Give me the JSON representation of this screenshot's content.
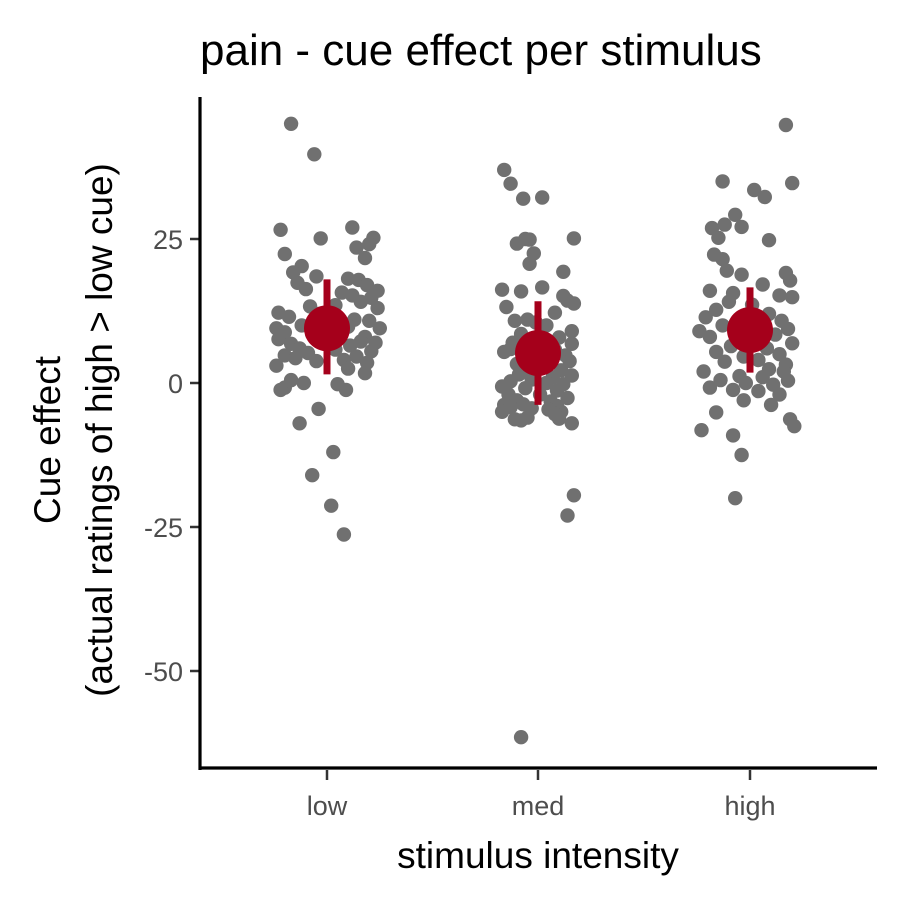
{
  "chart_data": {
    "type": "scatter",
    "title": "pain - cue effect per stimulus",
    "xlabel": "stimulus intensity",
    "ylabel": [
      "Cue effect",
      "(actual ratings of high > low cue)"
    ],
    "categories": [
      "low",
      "med",
      "high"
    ],
    "yticks": [
      -50,
      -25,
      0,
      25
    ],
    "ytick_labels": [
      "-50",
      "-25",
      "0",
      "25"
    ],
    "ylim": [
      -66,
      50
    ],
    "grid": false,
    "legend": "none",
    "colors": {
      "points": "#707070",
      "summary": "#a5001b",
      "axis": "#000000",
      "tick_text": "#4d4d4d"
    },
    "series": [
      {
        "category": "low",
        "mean": 9.5,
        "ci_low": 1.5,
        "ci_high": 18,
        "points": [
          {
            "jitter": -0.17,
            "y": 45.0
          },
          {
            "jitter": -0.06,
            "y": 39.7
          },
          {
            "jitter": 0.12,
            "y": 27.0
          },
          {
            "jitter": -0.22,
            "y": 26.6
          },
          {
            "jitter": -0.03,
            "y": 25.1
          },
          {
            "jitter": 0.22,
            "y": 25.2
          },
          {
            "jitter": 0.2,
            "y": 24.1
          },
          {
            "jitter": 0.14,
            "y": 23.5
          },
          {
            "jitter": -0.2,
            "y": 22.4
          },
          {
            "jitter": 0.18,
            "y": 21.7
          },
          {
            "jitter": -0.12,
            "y": 20.3
          },
          {
            "jitter": -0.16,
            "y": 19.2
          },
          {
            "jitter": -0.05,
            "y": 18.5
          },
          {
            "jitter": 0.1,
            "y": 18.1
          },
          {
            "jitter": 0.15,
            "y": 17.9
          },
          {
            "jitter": -0.14,
            "y": 17.4
          },
          {
            "jitter": 0.19,
            "y": 17.0
          },
          {
            "jitter": 0.24,
            "y": 16.0
          },
          {
            "jitter": -0.1,
            "y": 16.3
          },
          {
            "jitter": 0.07,
            "y": 15.7
          },
          {
            "jitter": 0.12,
            "y": 15.2
          },
          {
            "jitter": 0.21,
            "y": 14.8
          },
          {
            "jitter": 0.16,
            "y": 14.1
          },
          {
            "jitter": -0.08,
            "y": 13.3
          },
          {
            "jitter": 0.04,
            "y": 13.5
          },
          {
            "jitter": 0.24,
            "y": 13.0
          },
          {
            "jitter": -0.23,
            "y": 12.2
          },
          {
            "jitter": -0.04,
            "y": 12.0
          },
          {
            "jitter": -0.18,
            "y": 11.5
          },
          {
            "jitter": 0.13,
            "y": 11.0
          },
          {
            "jitter": 0.2,
            "y": 10.8
          },
          {
            "jitter": -0.12,
            "y": 10.0
          },
          {
            "jitter": 0.1,
            "y": 9.8
          },
          {
            "jitter": -0.24,
            "y": 9.5
          },
          {
            "jitter": 0.25,
            "y": 9.5
          },
          {
            "jitter": -0.2,
            "y": 8.8
          },
          {
            "jitter": -0.07,
            "y": 8.5
          },
          {
            "jitter": 0.06,
            "y": 8.4
          },
          {
            "jitter": 0.18,
            "y": 8.0
          },
          {
            "jitter": -0.23,
            "y": 7.6
          },
          {
            "jitter": -0.03,
            "y": 7.4
          },
          {
            "jitter": 0.16,
            "y": 7.2
          },
          {
            "jitter": 0.23,
            "y": 7.0
          },
          {
            "jitter": -0.17,
            "y": 6.8
          },
          {
            "jitter": 0.11,
            "y": 6.5
          },
          {
            "jitter": -0.13,
            "y": 6.0
          },
          {
            "jitter": 0.04,
            "y": 5.8
          },
          {
            "jitter": 0.21,
            "y": 5.5
          },
          {
            "jitter": -0.09,
            "y": 5.2
          },
          {
            "jitter": -0.2,
            "y": 4.8
          },
          {
            "jitter": 0.14,
            "y": 4.6
          },
          {
            "jitter": -0.15,
            "y": 4.3
          },
          {
            "jitter": 0.08,
            "y": 4.0
          },
          {
            "jitter": -0.05,
            "y": 3.8
          },
          {
            "jitter": 0.19,
            "y": 3.5
          },
          {
            "jitter": -0.24,
            "y": 3.0
          },
          {
            "jitter": 0.1,
            "y": 2.5
          },
          {
            "jitter": 0.18,
            "y": 1.7
          },
          {
            "jitter": -0.17,
            "y": 0.5
          },
          {
            "jitter": -0.11,
            "y": 0.0
          },
          {
            "jitter": 0.05,
            "y": -0.2
          },
          {
            "jitter": -0.2,
            "y": -0.8
          },
          {
            "jitter": 0.09,
            "y": -1.2
          },
          {
            "jitter": -0.22,
            "y": -1.2
          },
          {
            "jitter": -0.04,
            "y": -4.5
          },
          {
            "jitter": -0.13,
            "y": -7.0
          },
          {
            "jitter": 0.03,
            "y": -12.0
          },
          {
            "jitter": -0.07,
            "y": -16.0
          },
          {
            "jitter": 0.02,
            "y": -21.3
          },
          {
            "jitter": 0.08,
            "y": -26.3
          }
        ]
      },
      {
        "category": "med",
        "mean": 5.2,
        "ci_low": -3.8,
        "ci_high": 14.2,
        "points": [
          {
            "jitter": -0.16,
            "y": 37.0
          },
          {
            "jitter": -0.13,
            "y": 34.6
          },
          {
            "jitter": -0.07,
            "y": 32.0
          },
          {
            "jitter": 0.02,
            "y": 32.2
          },
          {
            "jitter": -0.06,
            "y": 25.0
          },
          {
            "jitter": -0.04,
            "y": 24.9
          },
          {
            "jitter": 0.17,
            "y": 25.1
          },
          {
            "jitter": -0.1,
            "y": 24.2
          },
          {
            "jitter": -0.02,
            "y": 22.5
          },
          {
            "jitter": -0.04,
            "y": 20.7
          },
          {
            "jitter": 0.12,
            "y": 19.3
          },
          {
            "jitter": -0.17,
            "y": 16.2
          },
          {
            "jitter": -0.08,
            "y": 15.9
          },
          {
            "jitter": 0.02,
            "y": 16.6
          },
          {
            "jitter": 0.12,
            "y": 15.1
          },
          {
            "jitter": 0.14,
            "y": 14.3
          },
          {
            "jitter": 0.17,
            "y": 13.8
          },
          {
            "jitter": -0.15,
            "y": 13.2
          },
          {
            "jitter": 0.08,
            "y": 12.2
          },
          {
            "jitter": -0.05,
            "y": 11.0
          },
          {
            "jitter": -0.11,
            "y": 10.8
          },
          {
            "jitter": -0.01,
            "y": 10.5
          },
          {
            "jitter": 0.04,
            "y": 10.0
          },
          {
            "jitter": 0.16,
            "y": 9.0
          },
          {
            "jitter": -0.08,
            "y": 8.5
          },
          {
            "jitter": 0.1,
            "y": 7.9
          },
          {
            "jitter": -0.12,
            "y": 7.0
          },
          {
            "jitter": 0.16,
            "y": 6.8
          },
          {
            "jitter": 0.03,
            "y": 6.5
          },
          {
            "jitter": -0.04,
            "y": 6.2
          },
          {
            "jitter": 0.08,
            "y": 5.8
          },
          {
            "jitter": -0.16,
            "y": 5.4
          },
          {
            "jitter": -0.13,
            "y": 5.9
          },
          {
            "jitter": 0.06,
            "y": 5.0
          },
          {
            "jitter": 0.13,
            "y": 4.8
          },
          {
            "jitter": -0.02,
            "y": 4.5
          },
          {
            "jitter": 0.05,
            "y": 4.0
          },
          {
            "jitter": 0.15,
            "y": 3.8
          },
          {
            "jitter": -0.1,
            "y": 3.3
          },
          {
            "jitter": -0.06,
            "y": 2.6
          },
          {
            "jitter": 0.11,
            "y": 2.2
          },
          {
            "jitter": -0.09,
            "y": 1.5
          },
          {
            "jitter": 0.07,
            "y": 1.0
          },
          {
            "jitter": 0.16,
            "y": 1.3
          },
          {
            "jitter": -0.03,
            "y": 0.6
          },
          {
            "jitter": -0.13,
            "y": 0.3
          },
          {
            "jitter": 0.04,
            "y": 0.0
          },
          {
            "jitter": 0.12,
            "y": -0.2
          },
          {
            "jitter": -0.17,
            "y": -0.6
          },
          {
            "jitter": -0.06,
            "y": -0.9
          },
          {
            "jitter": 0.09,
            "y": -1.3
          },
          {
            "jitter": -0.14,
            "y": -2.0
          },
          {
            "jitter": 0.01,
            "y": -2.0
          },
          {
            "jitter": 0.14,
            "y": -2.6
          },
          {
            "jitter": -0.1,
            "y": -3.0
          },
          {
            "jitter": 0.06,
            "y": -3.2
          },
          {
            "jitter": -0.16,
            "y": -3.8
          },
          {
            "jitter": -0.07,
            "y": -3.7
          },
          {
            "jitter": 0.09,
            "y": -4.0
          },
          {
            "jitter": -0.13,
            "y": -4.2
          },
          {
            "jitter": -0.03,
            "y": -4.4
          },
          {
            "jitter": 0.05,
            "y": -4.6
          },
          {
            "jitter": 0.11,
            "y": -5.0
          },
          {
            "jitter": -0.17,
            "y": -5.0
          },
          {
            "jitter": 0.08,
            "y": -5.4
          },
          {
            "jitter": -0.05,
            "y": -6.0
          },
          {
            "jitter": 0.1,
            "y": -6.2
          },
          {
            "jitter": -0.11,
            "y": -6.3
          },
          {
            "jitter": -0.08,
            "y": -6.5
          },
          {
            "jitter": 0.16,
            "y": -7.0
          },
          {
            "jitter": 0.17,
            "y": -19.5
          },
          {
            "jitter": 0.14,
            "y": -23.0
          },
          {
            "jitter": -0.08,
            "y": -61.5
          }
        ]
      },
      {
        "category": "high",
        "mean": 9.2,
        "ci_low": 1.8,
        "ci_high": 16.6,
        "points": [
          {
            "jitter": 0.17,
            "y": 44.8
          },
          {
            "jitter": -0.13,
            "y": 35.0
          },
          {
            "jitter": 0.2,
            "y": 34.7
          },
          {
            "jitter": 0.02,
            "y": 33.5
          },
          {
            "jitter": 0.07,
            "y": 32.3
          },
          {
            "jitter": -0.07,
            "y": 29.2
          },
          {
            "jitter": -0.12,
            "y": 27.5
          },
          {
            "jitter": -0.18,
            "y": 26.9
          },
          {
            "jitter": -0.04,
            "y": 27.1
          },
          {
            "jitter": -0.15,
            "y": 25.2
          },
          {
            "jitter": 0.09,
            "y": 24.8
          },
          {
            "jitter": -0.17,
            "y": 22.3
          },
          {
            "jitter": -0.13,
            "y": 21.5
          },
          {
            "jitter": -0.11,
            "y": 19.5
          },
          {
            "jitter": -0.04,
            "y": 18.8
          },
          {
            "jitter": 0.17,
            "y": 19.1
          },
          {
            "jitter": 0.19,
            "y": 17.8
          },
          {
            "jitter": 0.06,
            "y": 17.1
          },
          {
            "jitter": -0.19,
            "y": 16.0
          },
          {
            "jitter": -0.08,
            "y": 15.6
          },
          {
            "jitter": 0.14,
            "y": 15.2
          },
          {
            "jitter": 0.2,
            "y": 14.9
          },
          {
            "jitter": -0.1,
            "y": 14.1
          },
          {
            "jitter": 0.01,
            "y": 13.6
          },
          {
            "jitter": -0.16,
            "y": 12.7
          },
          {
            "jitter": 0.09,
            "y": 12.0
          },
          {
            "jitter": -0.21,
            "y": 11.4
          },
          {
            "jitter": -0.02,
            "y": 11.2
          },
          {
            "jitter": 0.15,
            "y": 10.8
          },
          {
            "jitter": -0.13,
            "y": 10.0
          },
          {
            "jitter": 0.06,
            "y": 9.6
          },
          {
            "jitter": 0.18,
            "y": 9.4
          },
          {
            "jitter": -0.24,
            "y": 9.0
          },
          {
            "jitter": -0.07,
            "y": 8.6
          },
          {
            "jitter": 0.12,
            "y": 8.4
          },
          {
            "jitter": -0.19,
            "y": 8.0
          },
          {
            "jitter": 0.02,
            "y": 7.6
          },
          {
            "jitter": 0.2,
            "y": 6.9
          },
          {
            "jitter": -0.09,
            "y": 6.4
          },
          {
            "jitter": 0.08,
            "y": 6.0
          },
          {
            "jitter": -0.16,
            "y": 5.4
          },
          {
            "jitter": 0.14,
            "y": 5.0
          },
          {
            "jitter": -0.03,
            "y": 4.6
          },
          {
            "jitter": 0.04,
            "y": 4.0
          },
          {
            "jitter": -0.12,
            "y": 3.7
          },
          {
            "jitter": 0.17,
            "y": 3.2
          },
          {
            "jitter": -0.22,
            "y": 2.0
          },
          {
            "jitter": 0.09,
            "y": 2.4
          },
          {
            "jitter": 0.16,
            "y": 2.0
          },
          {
            "jitter": -0.05,
            "y": 1.2
          },
          {
            "jitter": 0.06,
            "y": 1.0
          },
          {
            "jitter": -0.14,
            "y": 0.5
          },
          {
            "jitter": 0.18,
            "y": 0.4
          },
          {
            "jitter": -0.02,
            "y": 0.0
          },
          {
            "jitter": 0.11,
            "y": -0.3
          },
          {
            "jitter": -0.19,
            "y": -0.8
          },
          {
            "jitter": -0.08,
            "y": -1.2
          },
          {
            "jitter": 0.04,
            "y": -1.4
          },
          {
            "jitter": 0.14,
            "y": -2.0
          },
          {
            "jitter": -0.03,
            "y": -3.0
          },
          {
            "jitter": 0.1,
            "y": -3.8
          },
          {
            "jitter": -0.16,
            "y": -5.1
          },
          {
            "jitter": 0.19,
            "y": -6.3
          },
          {
            "jitter": 0.21,
            "y": -7.5
          },
          {
            "jitter": -0.23,
            "y": -8.2
          },
          {
            "jitter": -0.08,
            "y": -9.1
          },
          {
            "jitter": -0.04,
            "y": -12.5
          },
          {
            "jitter": -0.07,
            "y": -20.0
          }
        ]
      }
    ]
  }
}
